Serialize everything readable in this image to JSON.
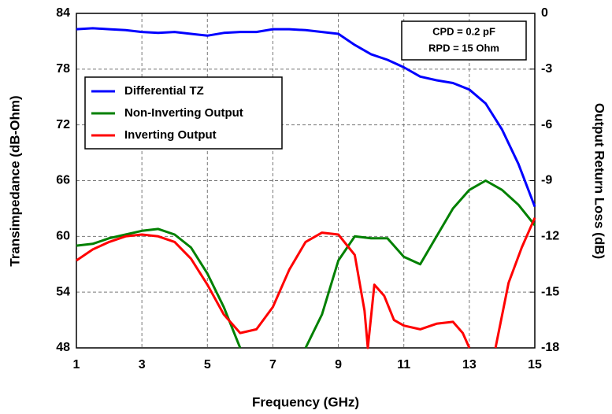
{
  "chart_data": {
    "type": "line",
    "xlabel": "Frequency (GHz)",
    "ylabel": "Transimpedance (dB-Ohm)",
    "y2label": "Output Return Loss (dB)",
    "annotations": [
      "CPD = 0.2 pF",
      "RPD = 15 Ohm"
    ],
    "xlim": [
      1,
      15
    ],
    "xticks": [
      1,
      3,
      5,
      7,
      9,
      11,
      13,
      15
    ],
    "ylim": [
      48,
      84
    ],
    "yticks": [
      48,
      54,
      60,
      66,
      72,
      78,
      84
    ],
    "y2lim": [
      -18,
      0
    ],
    "y2ticks": [
      -18,
      -15,
      -12,
      -9,
      -6,
      -3,
      0
    ],
    "grid": true,
    "legend": "upper left",
    "series": [
      {
        "name": "Differential TZ",
        "color": "#0000ff",
        "axis": "y",
        "x": [
          1,
          1.5,
          2,
          2.5,
          3,
          3.5,
          4,
          4.5,
          5,
          5.5,
          6,
          6.5,
          7,
          7.5,
          8,
          8.5,
          9,
          9.5,
          10,
          10.5,
          11,
          11.5,
          12,
          12.5,
          13,
          13.5,
          14,
          14.5,
          15
        ],
        "values": [
          82.3,
          82.4,
          82.3,
          82.2,
          82.0,
          81.9,
          82.0,
          81.8,
          81.6,
          81.9,
          82.0,
          82.0,
          82.3,
          82.3,
          82.2,
          82.0,
          81.8,
          80.6,
          79.6,
          79.0,
          78.2,
          77.2,
          76.8,
          76.5,
          75.8,
          74.3,
          71.5,
          67.8,
          63.2
        ]
      },
      {
        "name": "Non-Inverting Output",
        "color": "#008000",
        "axis": "y2",
        "x": [
          1,
          1.5,
          2,
          2.5,
          3,
          3.5,
          4,
          4.5,
          5,
          5.5,
          6,
          7,
          8,
          8.5,
          9,
          9.5,
          10,
          10.5,
          11,
          11.5,
          12,
          12.5,
          13,
          13.5,
          14,
          14.5,
          15
        ],
        "values": [
          -12.5,
          -12.4,
          -12.1,
          -11.9,
          -11.7,
          -11.6,
          -11.9,
          -12.6,
          -14.0,
          -15.8,
          -18.0,
          null,
          -18.0,
          -16.2,
          -13.3,
          -12.0,
          -12.1,
          -12.1,
          -13.1,
          -13.5,
          -12.0,
          -10.5,
          -9.5,
          -9.0,
          -9.5,
          -10.3,
          -11.4
        ]
      },
      {
        "name": "Inverting Output",
        "color": "#ff0000",
        "axis": "y2",
        "x": [
          1,
          1.5,
          2,
          2.5,
          3,
          3.5,
          4,
          4.5,
          5,
          5.5,
          6,
          6.5,
          7,
          7.5,
          8,
          8.5,
          9,
          9.5,
          9.8,
          9.9,
          10.1,
          10.4,
          10.7,
          11,
          11.5,
          12,
          12.5,
          12.8,
          13,
          13.4,
          13.8,
          14.2,
          14.6,
          15
        ],
        "values": [
          -13.3,
          -12.7,
          -12.3,
          -12.0,
          -11.9,
          -12.0,
          -12.3,
          -13.2,
          -14.6,
          -16.2,
          -17.2,
          -17.0,
          -15.8,
          -13.8,
          -12.3,
          -11.8,
          -11.9,
          -13.0,
          -16.0,
          -18.0,
          -14.6,
          -15.2,
          -16.5,
          -16.8,
          -17.0,
          -16.7,
          -16.6,
          -17.2,
          -18.0,
          null,
          -18.0,
          -14.5,
          -12.6,
          -11.0
        ]
      }
    ]
  }
}
